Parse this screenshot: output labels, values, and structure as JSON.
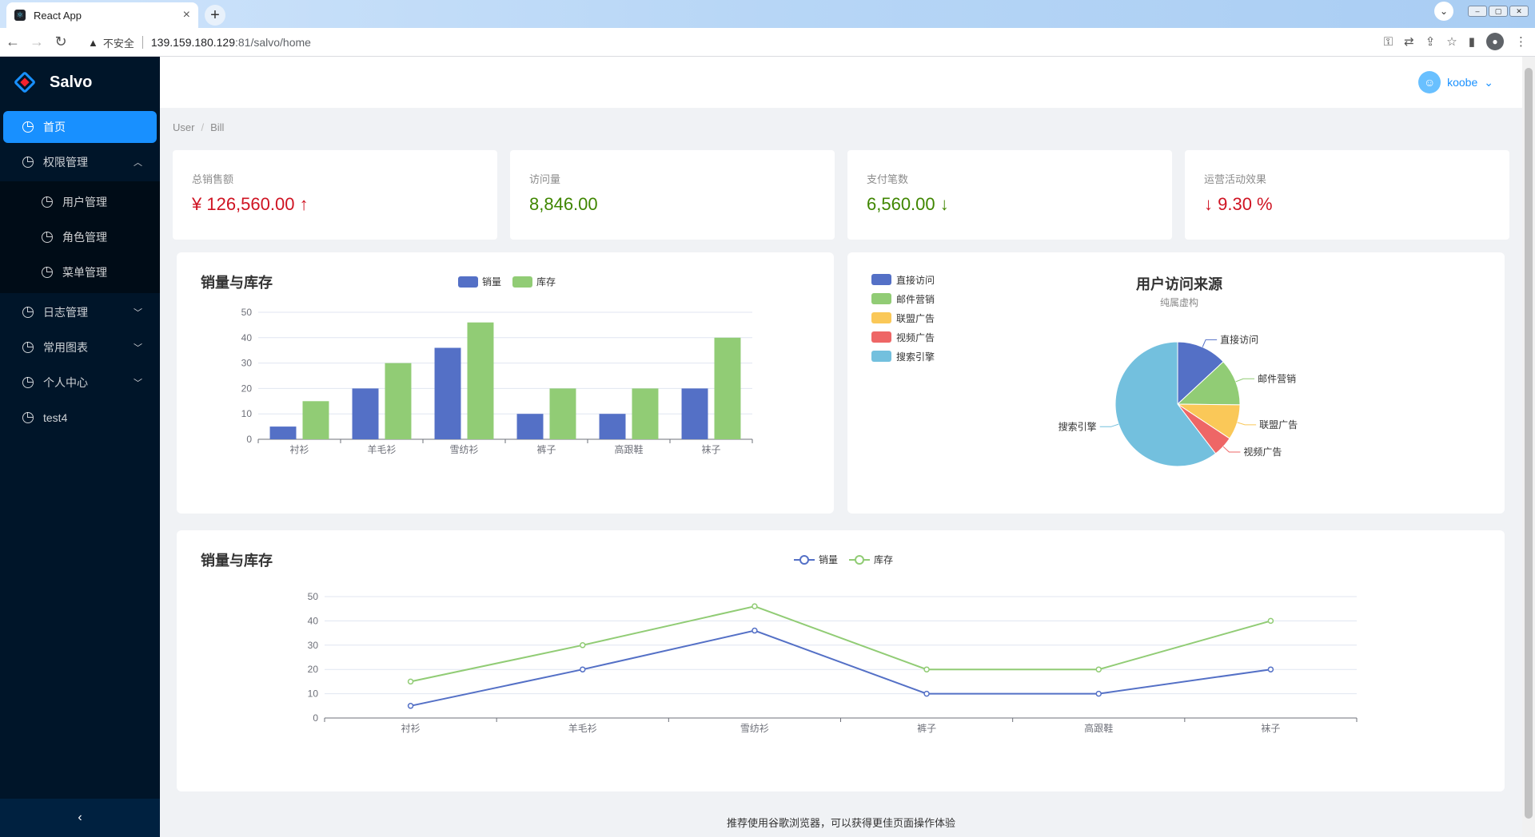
{
  "browser": {
    "tab_title": "React App",
    "security_label": "不安全",
    "url_host": "139.159.180.129",
    "url_rest": ":81/salvo/home"
  },
  "app": {
    "logo_text": "Salvo",
    "username": "koobe"
  },
  "sidebar": {
    "home": "首页",
    "perm": {
      "label": "权限管理",
      "children": [
        "用户管理",
        "角色管理",
        "菜单管理"
      ]
    },
    "log": "日志管理",
    "charts": "常用图表",
    "personal": "个人中心",
    "test": "test4"
  },
  "breadcrumb": [
    "User",
    "Bill"
  ],
  "stats": [
    {
      "label": "总销售额",
      "value": "¥ 126,560.00 ↑"
    },
    {
      "label": "访问量",
      "value": "8,846.00"
    },
    {
      "label": "支付笔数",
      "value": "6,560.00 ↓"
    },
    {
      "label": "运营活动效果",
      "value": "↓ 9.30 %"
    }
  ],
  "colors": {
    "blue": "#5470c6",
    "green": "#91cc75",
    "yellow": "#fac858",
    "red": "#ee6666",
    "cyan": "#73c0de",
    "primary": "#1890ff"
  },
  "footer": "推荐使用谷歌浏览器，可以获得更佳页面操作体验",
  "chart_data": [
    {
      "type": "bar",
      "title": "销量与库存",
      "categories": [
        "衬衫",
        "羊毛衫",
        "雪纺衫",
        "裤子",
        "高跟鞋",
        "袜子"
      ],
      "series": [
        {
          "name": "销量",
          "values": [
            5,
            20,
            36,
            10,
            10,
            20
          ]
        },
        {
          "name": "库存",
          "values": [
            15,
            30,
            46,
            20,
            20,
            40
          ]
        }
      ],
      "yticks": [
        0,
        10,
        20,
        30,
        40,
        50
      ],
      "ylim": [
        0,
        50
      ]
    },
    {
      "type": "pie",
      "title": "用户访问来源",
      "subtitle": "纯属虚构",
      "labels": [
        "直接访问",
        "邮件营销",
        "联盟广告",
        "视频广告",
        "搜索引擎"
      ],
      "values": [
        335,
        310,
        234,
        135,
        1548
      ]
    },
    {
      "type": "line",
      "title": "销量与库存",
      "categories": [
        "衬衫",
        "羊毛衫",
        "雪纺衫",
        "裤子",
        "高跟鞋",
        "袜子"
      ],
      "series": [
        {
          "name": "销量",
          "values": [
            5,
            20,
            36,
            10,
            10,
            20
          ]
        },
        {
          "name": "库存",
          "values": [
            15,
            30,
            46,
            20,
            20,
            40
          ]
        }
      ],
      "yticks": [
        0,
        10,
        20,
        30,
        40,
        50
      ],
      "ylim": [
        0,
        50
      ]
    }
  ]
}
